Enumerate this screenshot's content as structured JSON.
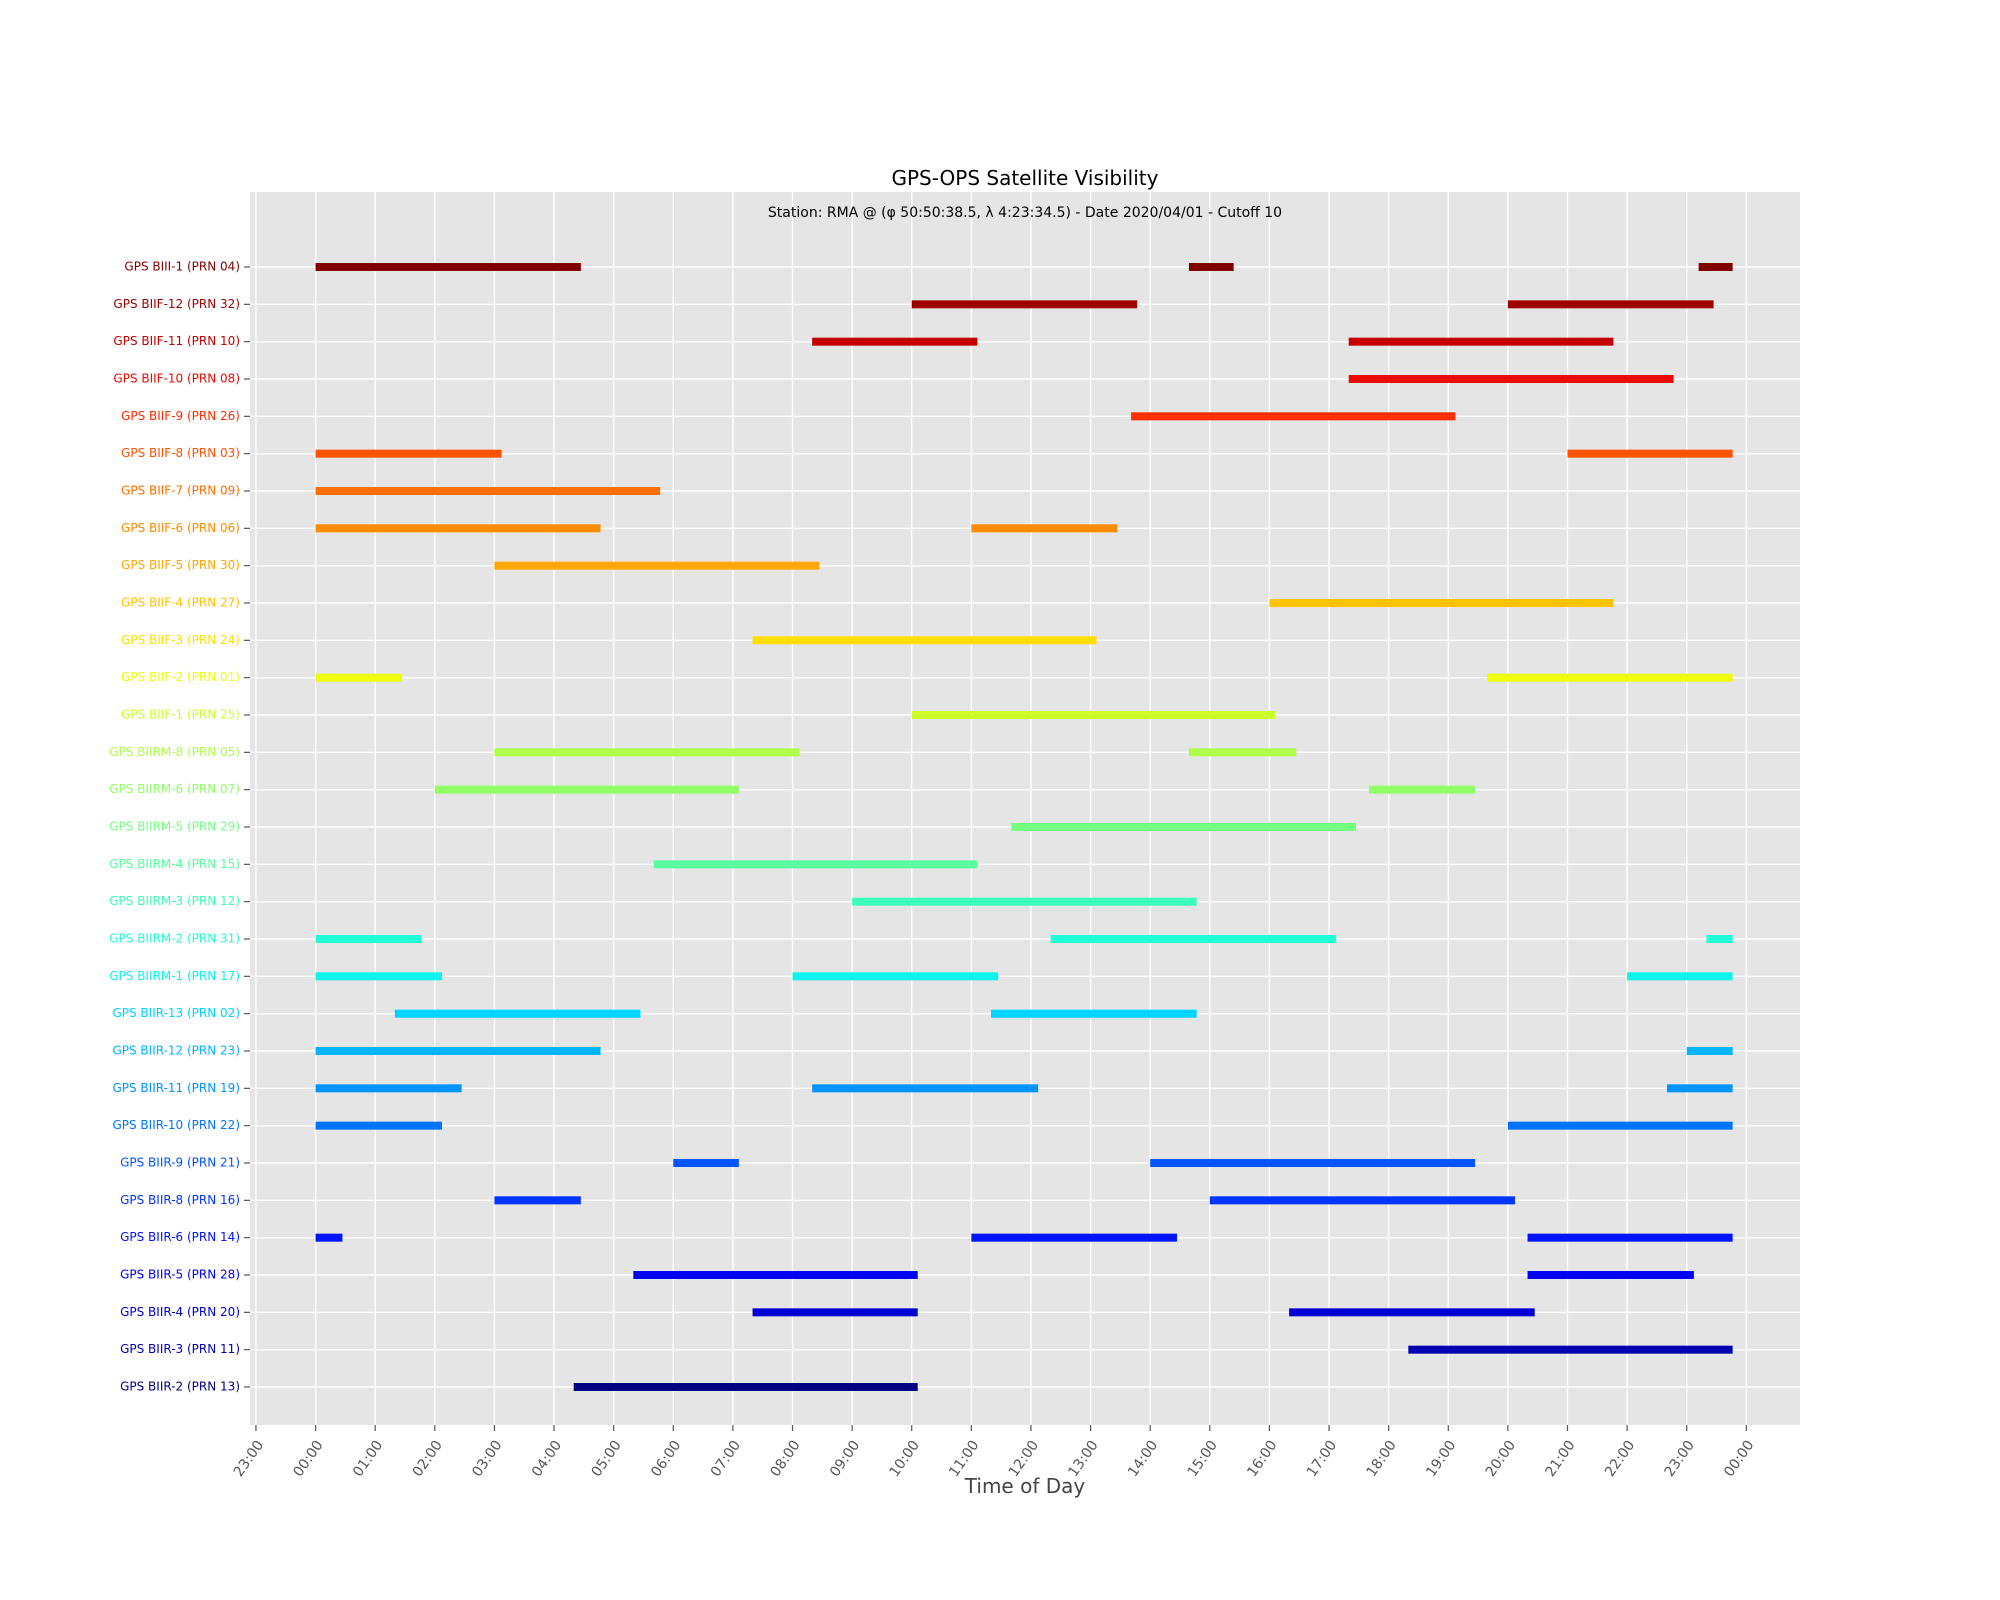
{
  "chart_data": {
    "type": "gantt",
    "title": "GPS-OPS Satellite Visibility",
    "subtitle": "Station: RMA @ (φ 50:50:38.5, λ 4:23:34.5) - Date 2020/04/01 - Cutoff 10",
    "xlabel": "Time of Day",
    "ylabel": "",
    "x_unit": "hours from 00:00 on 2020/04/01",
    "xlim": [
      -1.1,
      24.9
    ],
    "grid": true,
    "x_ticks": [
      {
        "value": -1,
        "label": "23:00"
      },
      {
        "value": 0,
        "label": "00:00"
      },
      {
        "value": 1,
        "label": "01:00"
      },
      {
        "value": 2,
        "label": "02:00"
      },
      {
        "value": 3,
        "label": "03:00"
      },
      {
        "value": 4,
        "label": "04:00"
      },
      {
        "value": 5,
        "label": "05:00"
      },
      {
        "value": 6,
        "label": "06:00"
      },
      {
        "value": 7,
        "label": "07:00"
      },
      {
        "value": 8,
        "label": "08:00"
      },
      {
        "value": 9,
        "label": "09:00"
      },
      {
        "value": 10,
        "label": "10:00"
      },
      {
        "value": 11,
        "label": "11:00"
      },
      {
        "value": 12,
        "label": "12:00"
      },
      {
        "value": 13,
        "label": "13:00"
      },
      {
        "value": 14,
        "label": "14:00"
      },
      {
        "value": 15,
        "label": "15:00"
      },
      {
        "value": 16,
        "label": "16:00"
      },
      {
        "value": 17,
        "label": "17:00"
      },
      {
        "value": 18,
        "label": "18:00"
      },
      {
        "value": 19,
        "label": "19:00"
      },
      {
        "value": 20,
        "label": "20:00"
      },
      {
        "value": 21,
        "label": "21:00"
      },
      {
        "value": 22,
        "label": "22:00"
      },
      {
        "value": 23,
        "label": "23:00"
      },
      {
        "value": 24,
        "label": "00:00"
      }
    ],
    "series": [
      {
        "name": "GPS BIII-1  (PRN 04)",
        "color": "#800000",
        "intervals": [
          [
            0.0,
            4.45
          ],
          [
            14.65,
            15.4
          ],
          [
            23.2,
            23.77
          ]
        ]
      },
      {
        "name": "GPS BIIF-12 (PRN 32)",
        "color": "#9e0000",
        "intervals": [
          [
            10.0,
            13.78
          ],
          [
            20.0,
            23.45
          ]
        ]
      },
      {
        "name": "GPS BIIF-11 (PRN 10)",
        "color": "#c40000",
        "intervals": [
          [
            8.33,
            11.1
          ],
          [
            17.33,
            21.77
          ]
        ]
      },
      {
        "name": "GPS BIIF-10 (PRN 08)",
        "color": "#ea0a00",
        "intervals": [
          [
            17.33,
            22.78
          ]
        ]
      },
      {
        "name": "GPS BIIF-9  (PRN 26)",
        "color": "#ff2e00",
        "intervals": [
          [
            13.68,
            19.12
          ]
        ]
      },
      {
        "name": "GPS BIIF-8  (PRN 03)",
        "color": "#ff5300",
        "intervals": [
          [
            0.0,
            3.12
          ],
          [
            21.0,
            23.77
          ]
        ]
      },
      {
        "name": "GPS BIIF-7  (PRN 09)",
        "color": "#ff6f00",
        "intervals": [
          [
            0.0,
            5.78
          ]
        ]
      },
      {
        "name": "GPS BIIF-6  (PRN 06)",
        "color": "#ff8b00",
        "intervals": [
          [
            0.0,
            4.78
          ],
          [
            11.0,
            13.45
          ]
        ]
      },
      {
        "name": "GPS BIIF-5  (PRN 30)",
        "color": "#ffa700",
        "intervals": [
          [
            3.0,
            8.45
          ]
        ]
      },
      {
        "name": "GPS BIIF-4  (PRN 27)",
        "color": "#ffc300",
        "intervals": [
          [
            16.0,
            21.77
          ]
        ]
      },
      {
        "name": "GPS BIIF-3  (PRN 24)",
        "color": "#ffde00",
        "intervals": [
          [
            7.33,
            13.1
          ]
        ]
      },
      {
        "name": "GPS BIIF-2  (PRN 01)",
        "color": "#eeff09",
        "intervals": [
          [
            0.0,
            1.45
          ],
          [
            19.65,
            23.77
          ]
        ]
      },
      {
        "name": "GPS BIIF-1  (PRN 25)",
        "color": "#ccff2a",
        "intervals": [
          [
            10.0,
            16.1
          ]
        ]
      },
      {
        "name": "GPS BIIRM-8 (PRN 05)",
        "color": "#adff49",
        "intervals": [
          [
            3.0,
            8.12
          ],
          [
            14.65,
            16.45
          ]
        ]
      },
      {
        "name": "GPS BIIRM-6 (PRN 07)",
        "color": "#91ff66",
        "intervals": [
          [
            2.0,
            7.1
          ],
          [
            17.67,
            19.45
          ]
        ]
      },
      {
        "name": "GPS BIIRM-5 (PRN 29)",
        "color": "#75ff82",
        "intervals": [
          [
            11.67,
            17.45
          ]
        ]
      },
      {
        "name": "GPS BIIRM-4 (PRN 15)",
        "color": "#59ff9e",
        "intervals": [
          [
            5.67,
            11.1
          ]
        ]
      },
      {
        "name": "GPS BIIRM-3 (PRN 12)",
        "color": "#3dffba",
        "intervals": [
          [
            9.0,
            14.78
          ]
        ]
      },
      {
        "name": "GPS BIIRM-2 (PRN 31)",
        "color": "#21ffd6",
        "intervals": [
          [
            0.0,
            1.78
          ],
          [
            12.33,
            17.12
          ],
          [
            23.33,
            23.77
          ]
        ]
      },
      {
        "name": "GPS BIIRM-1 (PRN 17)",
        "color": "#0cf4eb",
        "intervals": [
          [
            0.0,
            2.12
          ],
          [
            8.0,
            11.45
          ],
          [
            22.0,
            23.77
          ]
        ]
      },
      {
        "name": "GPS BIIR-13 (PRN 02)",
        "color": "#00d4ff",
        "intervals": [
          [
            1.33,
            5.45
          ],
          [
            11.33,
            14.78
          ]
        ]
      },
      {
        "name": "GPS BIIR-12 (PRN 23)",
        "color": "#00b4ff",
        "intervals": [
          [
            0.0,
            4.78
          ],
          [
            23.0,
            23.77
          ]
        ]
      },
      {
        "name": "GPS BIIR-11 (PRN 19)",
        "color": "#0094ff",
        "intervals": [
          [
            0.0,
            2.45
          ],
          [
            8.33,
            12.12
          ],
          [
            22.67,
            23.77
          ]
        ]
      },
      {
        "name": "GPS BIIR-10 (PRN 22)",
        "color": "#0074ff",
        "intervals": [
          [
            0.0,
            2.12
          ],
          [
            20.0,
            23.77
          ]
        ]
      },
      {
        "name": "GPS BIIR-9  (PRN 21)",
        "color": "#0054ff",
        "intervals": [
          [
            6.0,
            7.1
          ],
          [
            14.0,
            19.45
          ]
        ]
      },
      {
        "name": "GPS BIIR-8  (PRN 16)",
        "color": "#0034ff",
        "intervals": [
          [
            3.0,
            4.45
          ],
          [
            15.0,
            20.12
          ]
        ]
      },
      {
        "name": "GPS BIIR-6  (PRN 14)",
        "color": "#0014ff",
        "intervals": [
          [
            0.0,
            0.45
          ],
          [
            11.0,
            14.45
          ],
          [
            20.33,
            23.77
          ]
        ]
      },
      {
        "name": "GPS BIIR-5  (PRN 28)",
        "color": "#0000f6",
        "intervals": [
          [
            5.33,
            10.1
          ],
          [
            20.33,
            23.12
          ]
        ]
      },
      {
        "name": "GPS BIIR-4  (PRN 20)",
        "color": "#0000d4",
        "intervals": [
          [
            7.33,
            10.1
          ],
          [
            16.33,
            20.45
          ]
        ]
      },
      {
        "name": "GPS BIIR-3  (PRN 11)",
        "color": "#0000b2",
        "intervals": [
          [
            18.33,
            23.77
          ]
        ]
      },
      {
        "name": "GPS BIIR-2  (PRN 13)",
        "color": "#000080",
        "intervals": [
          [
            4.33,
            10.1
          ]
        ]
      }
    ]
  }
}
